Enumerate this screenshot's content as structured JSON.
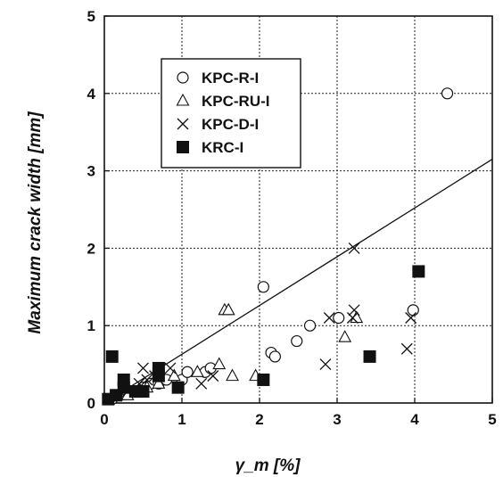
{
  "chart_data": {
    "type": "scatter",
    "title": "",
    "xlabel": "γ_m [%]",
    "ylabel": "Maximum crack width [mm]",
    "xlim": [
      0,
      5
    ],
    "ylim": [
      0,
      5
    ],
    "xticks": [
      0,
      1,
      2,
      3,
      4,
      5
    ],
    "yticks": [
      0,
      1,
      2,
      3,
      4,
      5
    ],
    "grid": true,
    "legend_position": "top-left",
    "series": [
      {
        "name": "KPC-R-I",
        "marker": "circle",
        "x": [
          0.05,
          0.1,
          0.15,
          0.2,
          0.3,
          0.4,
          0.5,
          0.6,
          0.7,
          0.8,
          1.0,
          1.07,
          1.3,
          1.37,
          2.05,
          2.15,
          2.2,
          2.48,
          2.65,
          3.02,
          3.98,
          4.42
        ],
        "y": [
          0.05,
          0.05,
          0.1,
          0.1,
          0.15,
          0.15,
          0.2,
          0.25,
          0.25,
          0.3,
          0.3,
          0.4,
          0.4,
          0.45,
          1.5,
          0.65,
          0.6,
          0.8,
          1.0,
          1.1,
          1.2,
          4.0
        ]
      },
      {
        "name": "KPC-RU-I",
        "marker": "triangle",
        "x": [
          0.2,
          0.3,
          0.45,
          0.55,
          0.7,
          0.9,
          1.2,
          1.48,
          1.55,
          1.6,
          1.65,
          1.95,
          3.1,
          3.25
        ],
        "y": [
          0.1,
          0.1,
          0.15,
          0.2,
          0.25,
          0.35,
          0.4,
          0.5,
          1.2,
          1.2,
          0.35,
          0.35,
          0.85,
          1.1
        ]
      },
      {
        "name": "KPC-D-I",
        "marker": "x",
        "x": [
          0.15,
          0.3,
          0.45,
          0.5,
          0.55,
          0.65,
          0.85,
          1.25,
          1.4,
          2.85,
          2.9,
          3.2,
          3.22,
          3.22,
          3.9,
          3.95
        ],
        "y": [
          0.1,
          0.15,
          0.25,
          0.45,
          0.3,
          0.35,
          0.45,
          0.25,
          0.35,
          0.5,
          1.1,
          1.1,
          1.2,
          2.0,
          0.7,
          1.1
        ]
      },
      {
        "name": "KRC-I",
        "marker": "square",
        "x": [
          0.05,
          0.1,
          0.15,
          0.25,
          0.25,
          0.4,
          0.5,
          0.7,
          0.7,
          0.95,
          2.05,
          3.42,
          4.05
        ],
        "y": [
          0.05,
          0.6,
          0.1,
          0.2,
          0.3,
          0.15,
          0.15,
          0.35,
          0.45,
          0.2,
          0.3,
          0.6,
          1.7
        ]
      }
    ],
    "trendline": {
      "x": [
        0,
        5
      ],
      "y": [
        0,
        3.15
      ]
    }
  }
}
